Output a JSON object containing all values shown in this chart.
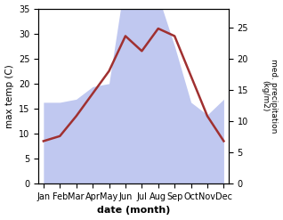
{
  "months": [
    "Jan",
    "Feb",
    "Mar",
    "Apr",
    "May",
    "Jun",
    "Jul",
    "Aug",
    "Sep",
    "Oct",
    "Nov",
    "Dec"
  ],
  "temperature": [
    8.5,
    9.5,
    13.5,
    18.0,
    22.5,
    29.5,
    26.5,
    31.0,
    29.5,
    21.5,
    13.5,
    8.5
  ],
  "precipitation": [
    13.0,
    13.0,
    13.5,
    15.5,
    16.0,
    33.0,
    28.0,
    30.0,
    22.0,
    13.0,
    11.0,
    13.5
  ],
  "temp_color": "#a03030",
  "precip_fill_color": "#c0c8f0",
  "ylabel_left": "max temp (C)",
  "ylabel_right": "med. precipitation\n(kg/m2)",
  "xlabel": "date (month)",
  "ylim_temp": [
    0,
    35
  ],
  "ylim_precip": [
    0,
    28
  ],
  "yticks_temp": [
    0,
    5,
    10,
    15,
    20,
    25,
    30,
    35
  ],
  "yticks_precip": [
    0,
    5,
    10,
    15,
    20,
    25
  ],
  "background_color": "#ffffff"
}
